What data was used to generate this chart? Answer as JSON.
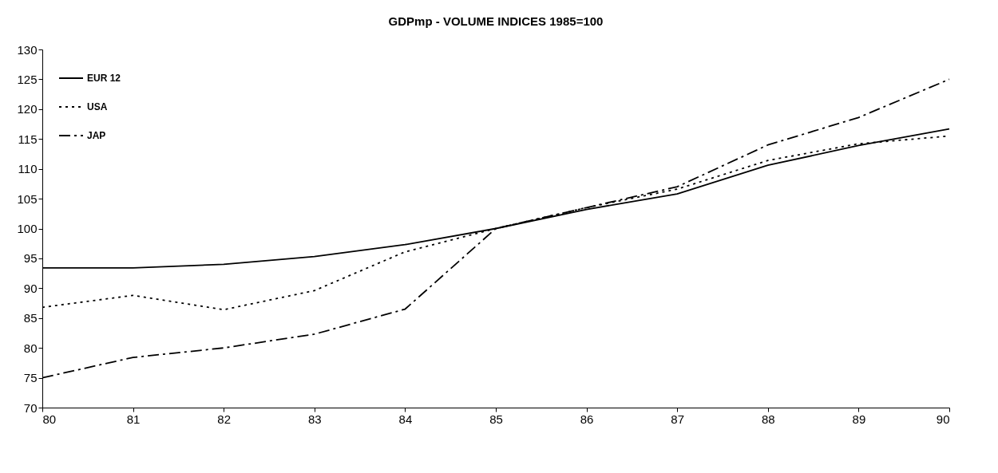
{
  "chart_data": {
    "type": "line",
    "title": "GDPmp - VOLUME INDICES    1985=100",
    "x": [
      80,
      81,
      82,
      83,
      84,
      85,
      86,
      87,
      88,
      89,
      90
    ],
    "series": [
      {
        "name": "EUR 12",
        "color": "#000000",
        "line_style": "solid",
        "values": [
          93.4,
          93.4,
          94.0,
          95.3,
          97.3,
          100,
          103.2,
          105.8,
          110.6,
          113.9,
          116.7
        ]
      },
      {
        "name": "USA",
        "color": "#000000",
        "line_style": "dotted",
        "values": [
          86.8,
          88.8,
          86.4,
          89.6,
          96.1,
          100,
          103.5,
          106.6,
          111.4,
          114.2,
          115.5
        ]
      },
      {
        "name": "JAP",
        "color": "#000000",
        "line_style": "dashed",
        "values": [
          75.0,
          78.4,
          80.0,
          82.3,
          86.5,
          100,
          103.5,
          107.0,
          114.0,
          118.6,
          125.0
        ]
      }
    ],
    "xlim": [
      80,
      90
    ],
    "xticks": [
      80,
      81,
      82,
      83,
      84,
      85,
      86,
      87,
      88,
      89,
      90
    ],
    "ylim": [
      70,
      130
    ],
    "yticks": [
      70,
      75,
      80,
      85,
      90,
      95,
      100,
      105,
      110,
      115,
      120,
      125,
      130
    ],
    "grid": false,
    "legend": "top left",
    "marker": "none"
  }
}
